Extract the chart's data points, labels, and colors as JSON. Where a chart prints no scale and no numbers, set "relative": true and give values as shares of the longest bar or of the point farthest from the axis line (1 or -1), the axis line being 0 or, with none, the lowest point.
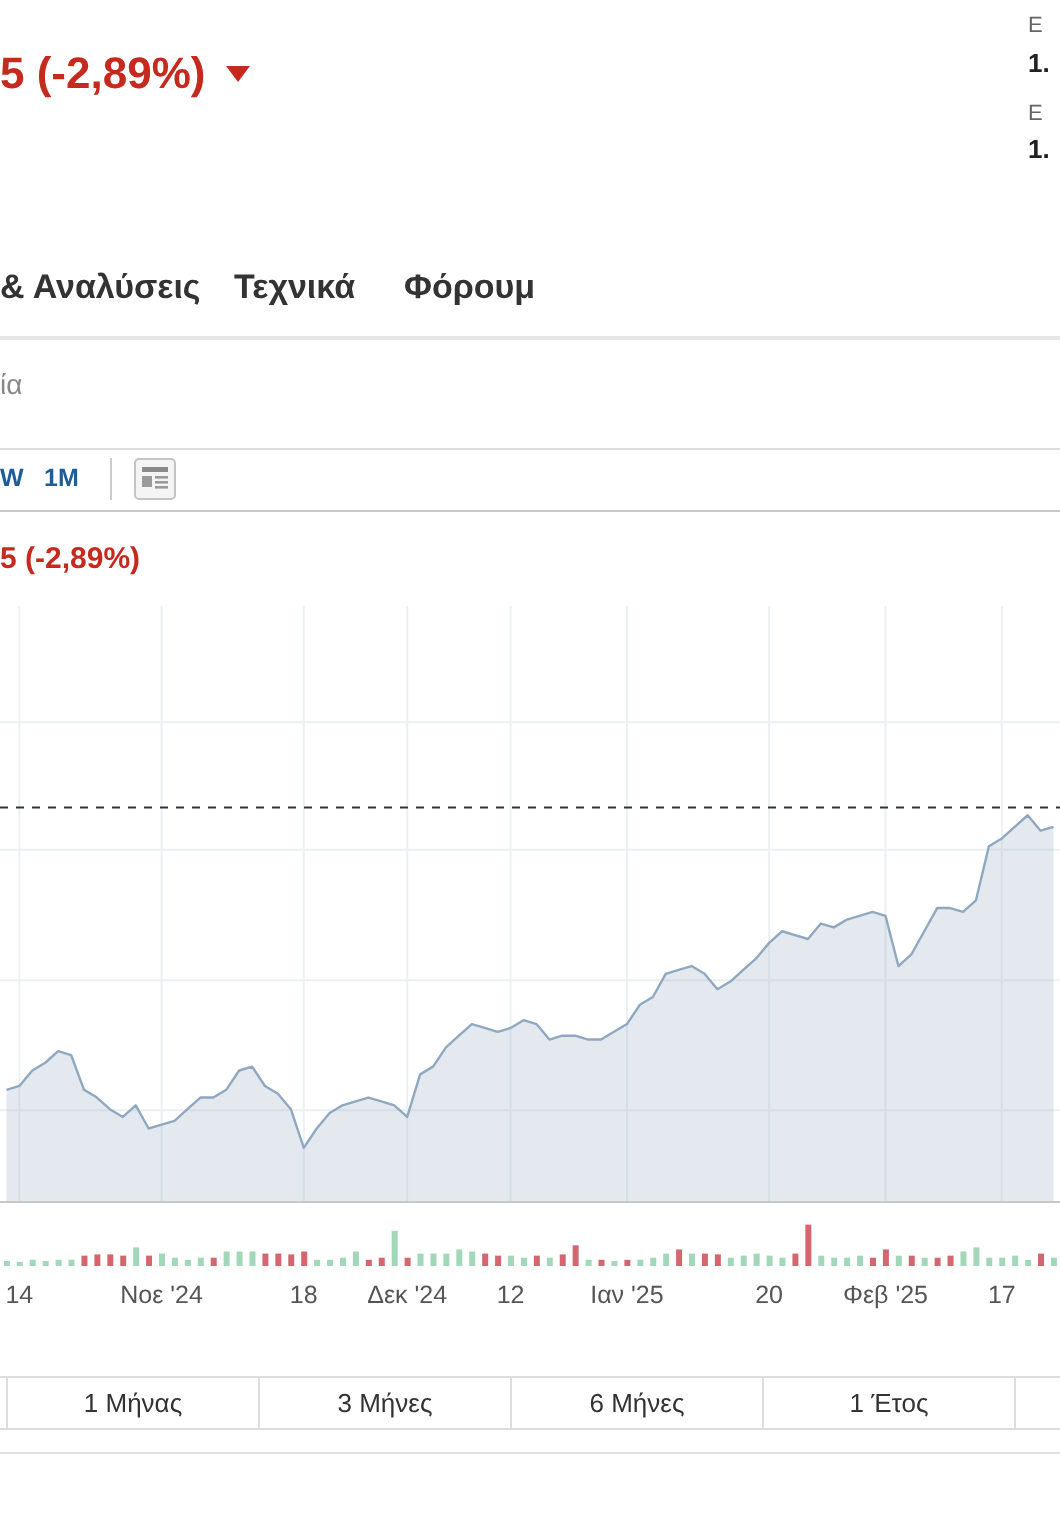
{
  "chart_data": [
    {
      "type": "other",
      "title": "5 (-2,89%)",
      "annotations": [
        "Ε",
        "1.",
        "Ε",
        "1.",
        "& Αναλύσεις",
        "Τεχνικά",
        "Φόρουμ",
        "ία",
        "W",
        "1M"
      ]
    },
    {
      "type": "area",
      "title": "5 (-2,89%)",
      "relative": true,
      "grid": true,
      "color": "#8fa8c0",
      "categories": [
        null,
        "14",
        null,
        null,
        null,
        null,
        null,
        null,
        null,
        null,
        null,
        null,
        "Νοε '24",
        null,
        null,
        null,
        null,
        null,
        null,
        null,
        null,
        null,
        null,
        "18",
        null,
        null,
        null,
        null,
        null,
        null,
        null,
        "Δεκ '24",
        null,
        null,
        null,
        null,
        null,
        null,
        null,
        "12",
        null,
        null,
        null,
        null,
        null,
        null,
        null,
        null,
        "Ιαν '25",
        null,
        null,
        null,
        null,
        null,
        null,
        null,
        null,
        null,
        null,
        "20",
        null,
        null,
        null,
        null,
        null,
        null,
        null,
        null,
        "Φεβ '25",
        null,
        null,
        null,
        null,
        null,
        null,
        null,
        null,
        "17",
        null,
        null,
        null,
        null
      ],
      "values": [
        0.29,
        0.3,
        0.34,
        0.36,
        0.39,
        0.38,
        0.29,
        0.27,
        0.24,
        0.22,
        0.25,
        0.19,
        0.2,
        0.21,
        0.24,
        0.27,
        0.27,
        0.29,
        0.34,
        0.35,
        0.3,
        0.28,
        0.24,
        0.14,
        0.19,
        0.23,
        0.25,
        0.26,
        0.27,
        0.26,
        0.25,
        0.22,
        0.33,
        0.35,
        0.4,
        0.43,
        0.46,
        0.45,
        0.44,
        0.45,
        0.47,
        0.46,
        0.42,
        0.43,
        0.43,
        0.42,
        0.42,
        0.44,
        0.46,
        0.51,
        0.53,
        0.59,
        0.6,
        0.61,
        0.59,
        0.55,
        0.57,
        0.6,
        0.63,
        0.67,
        0.7,
        0.69,
        0.68,
        0.72,
        0.71,
        0.73,
        0.74,
        0.75,
        0.74,
        0.61,
        0.64,
        0.7,
        0.76,
        0.76,
        0.75,
        0.78,
        0.92,
        0.94,
        0.97,
        1,
        0.96,
        0.97
      ],
      "ref_lines": [
        {
          "axis": "y",
          "value": 1.02,
          "line_style": "dashed",
          "color": "#333333"
        }
      ]
    },
    {
      "type": "bar",
      "relative": true,
      "categories": [
        null,
        null,
        null,
        null,
        null,
        null,
        null,
        null,
        null,
        null,
        null,
        null,
        null,
        null,
        null,
        null,
        null,
        null,
        null,
        null,
        null,
        null,
        null,
        null,
        null,
        null,
        null,
        null,
        null,
        null,
        null,
        null,
        null,
        null,
        null,
        null,
        null,
        null,
        null,
        null,
        null,
        null,
        null,
        null,
        null,
        null,
        null,
        null,
        null,
        null,
        null,
        null,
        null,
        null,
        null,
        null,
        null,
        null,
        null,
        null,
        null,
        null,
        null,
        null,
        null,
        null,
        null,
        null,
        null,
        null,
        null,
        null,
        null,
        null,
        null,
        null,
        null,
        null,
        null,
        null,
        null,
        null
      ],
      "values": [
        0.12,
        0.1,
        0.15,
        0.12,
        0.15,
        0.15,
        0.25,
        0.28,
        0.28,
        0.25,
        0.45,
        0.25,
        0.3,
        0.2,
        0.15,
        0.2,
        0.2,
        0.35,
        0.35,
        0.35,
        0.3,
        0.3,
        0.28,
        0.35,
        0.15,
        0.15,
        0.2,
        0.35,
        0.15,
        0.2,
        0.85,
        0.2,
        0.3,
        0.3,
        0.3,
        0.4,
        0.35,
        0.3,
        0.25,
        0.25,
        0.2,
        0.25,
        0.2,
        0.28,
        0.5,
        0.15,
        0.15,
        0.12,
        0.15,
        0.15,
        0.2,
        0.3,
        0.4,
        0.3,
        0.3,
        0.28,
        0.2,
        0.25,
        0.3,
        0.25,
        0.2,
        0.3,
        1,
        0.25,
        0.2,
        0.2,
        0.25,
        0.2,
        0.4,
        0.25,
        0.25,
        0.2,
        0.2,
        0.25,
        0.35,
        0.45,
        0.2,
        0.2,
        0.25,
        0.15,
        0.3,
        0.2
      ],
      "colors": [
        "#a3d7b9",
        "#a3d7b9",
        "#a3d7b9",
        "#a3d7b9",
        "#a3d7b9",
        "#a3d7b9",
        "#d4666f",
        "#d4666f",
        "#d4666f",
        "#d4666f",
        "#a3d7b9",
        "#d4666f",
        "#a3d7b9",
        "#a3d7b9",
        "#a3d7b9",
        "#a3d7b9",
        "#d4666f",
        "#a3d7b9",
        "#a3d7b9",
        "#a3d7b9",
        "#d4666f",
        "#d4666f",
        "#d4666f",
        "#d4666f",
        "#a3d7b9",
        "#a3d7b9",
        "#a3d7b9",
        "#a3d7b9",
        "#d4666f",
        "#d4666f",
        "#a3d7b9",
        "#d4666f",
        "#a3d7b9",
        "#a3d7b9",
        "#a3d7b9",
        "#a3d7b9",
        "#a3d7b9",
        "#d4666f",
        "#d4666f",
        "#a3d7b9",
        "#a3d7b9",
        "#d4666f",
        "#a3d7b9",
        "#d4666f",
        "#d4666f",
        "#a3d7b9",
        "#d4666f",
        "#a3d7b9",
        "#d4666f",
        "#a3d7b9",
        "#a3d7b9",
        "#a3d7b9",
        "#d4666f",
        "#a3d7b9",
        "#d4666f",
        "#d4666f",
        "#a3d7b9",
        "#a3d7b9",
        "#a3d7b9",
        "#a3d7b9",
        "#a3d7b9",
        "#d4666f",
        "#d4666f",
        "#a3d7b9",
        "#a3d7b9",
        "#a3d7b9",
        "#a3d7b9",
        "#d4666f",
        "#d4666f",
        "#a3d7b9",
        "#d4666f",
        "#a3d7b9",
        "#d4666f",
        "#d4666f",
        "#a3d7b9",
        "#a3d7b9",
        "#a3d7b9",
        "#a3d7b9",
        "#a3d7b9",
        "#a3d7b9",
        "#d4666f",
        "#a3d7b9"
      ]
    },
    {
      "type": "other",
      "annotations": [
        "1 Μήνας",
        "3 Μήνες",
        "6 Μήνες",
        "1 Έτος"
      ]
    }
  ]
}
